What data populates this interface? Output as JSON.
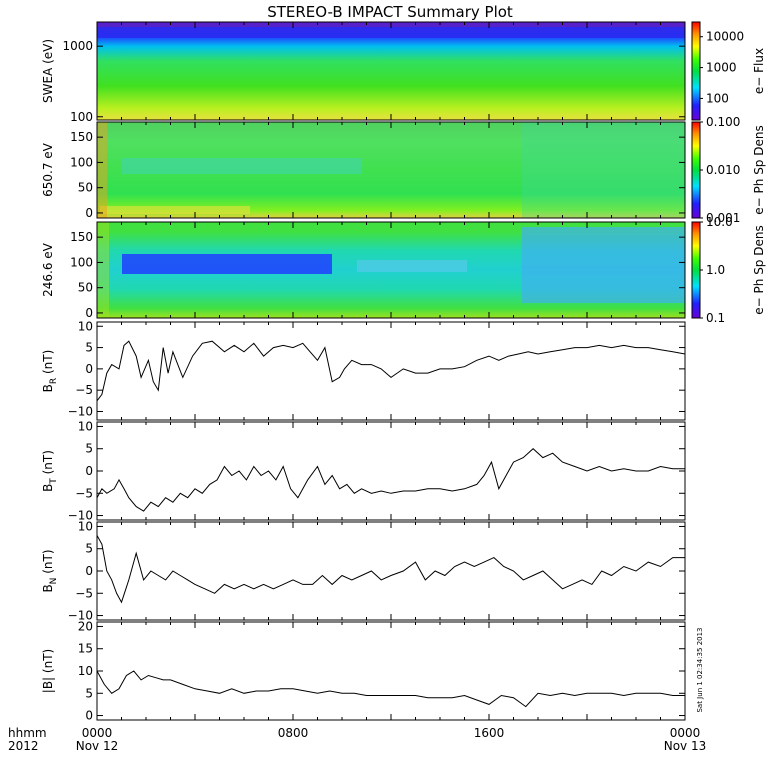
{
  "title": "STEREO-B IMPACT Summary Plot",
  "stamp": "Sat Jun 1 02:34:35 2013",
  "time_axis": {
    "label_top": "hhmm",
    "label_bottom": "2012",
    "ticks": [
      {
        "label": "0000",
        "sub": "Nov 12",
        "hour": 0
      },
      {
        "label": "0800",
        "sub": "",
        "hour": 8
      },
      {
        "label": "1600",
        "sub": "",
        "hour": 16
      },
      {
        "label": "0000",
        "sub": "Nov 13",
        "hour": 24
      }
    ],
    "range_hours": [
      0,
      24
    ]
  },
  "chart_data": [
    {
      "type": "heatmap",
      "ylabel": "SWEA (eV)",
      "ylog": true,
      "ylim": [
        90,
        2200
      ],
      "yticks": [
        "1000",
        "100"
      ],
      "yticks_values": [
        1000,
        100
      ],
      "colorbar": {
        "label": "e− Flux",
        "log": true,
        "range": [
          20,
          30000
        ],
        "ticks": [
          "10000",
          "1000",
          "100"
        ],
        "tick_values": [
          10000,
          1000,
          100
        ]
      },
      "description_levels": {
        "top_energy": "low flux (blue/purple)",
        "mid_energy": "flux ~1000 (green)",
        "low_energy": "flux ~10000 (yellow)"
      }
    },
    {
      "type": "heatmap",
      "ylabel": "650.7 eV",
      "ylim": [
        -10,
        180
      ],
      "yticks": [
        "150",
        "100",
        "50",
        "0"
      ],
      "yticks_values": [
        150,
        100,
        50,
        0
      ],
      "colorbar": {
        "label": "e− Ph Sp Dens",
        "log": true,
        "range": [
          0.001,
          0.1
        ],
        "ticks": [
          "0.100",
          "0.010",
          "0.001"
        ],
        "tick_values": [
          0.1,
          0.01,
          0.001
        ]
      }
    },
    {
      "type": "heatmap",
      "ylabel": "246.6 eV",
      "ylim": [
        -10,
        180
      ],
      "yticks": [
        "150",
        "100",
        "50",
        "0"
      ],
      "yticks_values": [
        150,
        100,
        50,
        0
      ],
      "colorbar": {
        "label": "e− Ph Sp Dens",
        "log": true,
        "range": [
          0.1,
          10
        ],
        "ticks": [
          "10.0",
          "1.0",
          "0.1"
        ],
        "tick_values": [
          10,
          1,
          0.1
        ]
      }
    },
    {
      "type": "line",
      "ylabel": "B",
      "ylabel_sub": "R",
      "ylabel_unit": " (nT)",
      "ylim": [
        -12,
        11
      ],
      "yticks": [
        "10",
        "5",
        "0",
        "−5",
        "−10"
      ],
      "yticks_values": [
        10,
        5,
        0,
        -5,
        -10
      ],
      "x": [
        0,
        0.2,
        0.4,
        0.6,
        0.9,
        1.1,
        1.3,
        1.6,
        1.8,
        2.1,
        2.3,
        2.5,
        2.7,
        2.9,
        3.1,
        3.3,
        3.5,
        3.9,
        4.3,
        4.7,
        5.2,
        5.6,
        6.0,
        6.4,
        6.8,
        7.2,
        7.6,
        8.0,
        8.4,
        8.7,
        9.0,
        9.3,
        9.6,
        9.9,
        10.1,
        10.4,
        10.8,
        11.2,
        11.6,
        12.0,
        12.5,
        13.0,
        13.5,
        14.0,
        14.5,
        15.0,
        15.5,
        16.0,
        16.4,
        16.8,
        17.2,
        17.6,
        18.0,
        18.5,
        19.0,
        19.5,
        20.0,
        20.5,
        21.0,
        21.5,
        22.0,
        22.5,
        23.0,
        23.5,
        24.0
      ],
      "y": [
        -7.5,
        -6,
        -1,
        1,
        0,
        5.5,
        6.5,
        3,
        -2,
        2,
        -3,
        -5,
        5,
        -1,
        4,
        1,
        -2,
        3,
        6,
        6.5,
        4,
        5.5,
        4,
        6,
        3,
        5,
        5.5,
        5,
        6,
        4,
        2,
        5,
        -3,
        -2,
        0,
        2,
        1,
        1,
        0,
        -2,
        0,
        -1,
        -1,
        0,
        0,
        0.5,
        2,
        3,
        2,
        3,
        3.5,
        4,
        3.5,
        4,
        4.5,
        5,
        5,
        5.5,
        5,
        5.5,
        5,
        5,
        4.5,
        4,
        3.5
      ]
    },
    {
      "type": "line",
      "ylabel": "B",
      "ylabel_sub": "T",
      "ylabel_unit": " (nT)",
      "ylim": [
        -11,
        11
      ],
      "yticks": [
        "10",
        "5",
        "0",
        "−5",
        "−10"
      ],
      "yticks_values": [
        10,
        5,
        0,
        -5,
        -10
      ],
      "x": [
        0,
        0.2,
        0.4,
        0.7,
        0.9,
        1.1,
        1.3,
        1.6,
        1.9,
        2.2,
        2.5,
        2.8,
        3.1,
        3.4,
        3.7,
        4.0,
        4.3,
        4.6,
        4.9,
        5.2,
        5.5,
        5.8,
        6.1,
        6.4,
        6.7,
        7.0,
        7.3,
        7.6,
        7.9,
        8.2,
        8.6,
        9.0,
        9.3,
        9.6,
        9.9,
        10.2,
        10.5,
        10.8,
        11.2,
        11.6,
        12.0,
        12.5,
        13.0,
        13.5,
        14.0,
        14.5,
        15.0,
        15.5,
        15.8,
        16.1,
        16.4,
        16.7,
        17.0,
        17.4,
        17.8,
        18.2,
        18.6,
        19.0,
        19.5,
        20.0,
        20.5,
        21.0,
        21.5,
        22.0,
        22.5,
        23.0,
        23.5,
        24.0
      ],
      "y": [
        -6,
        -4,
        -5,
        -4,
        -2,
        -4,
        -6,
        -8,
        -9,
        -7,
        -8,
        -6,
        -7,
        -5,
        -6,
        -4,
        -5,
        -3,
        -2,
        1,
        -1,
        0,
        -2,
        1,
        -1,
        0,
        -2,
        1,
        -4,
        -6,
        -2,
        1,
        -3,
        -1,
        -4,
        -3,
        -5,
        -4,
        -5,
        -4.5,
        -5,
        -4.5,
        -4.5,
        -4,
        -4,
        -4.5,
        -4,
        -3,
        -1,
        2,
        -4,
        -1,
        2,
        3,
        5,
        3,
        4,
        2,
        1,
        0,
        1,
        0,
        0.5,
        0,
        0,
        1,
        0.5,
        0.5
      ]
    },
    {
      "type": "line",
      "ylabel": "B",
      "ylabel_sub": "N",
      "ylabel_unit": " (nT)",
      "ylim": [
        -11,
        11
      ],
      "yticks": [
        "10",
        "5",
        "0",
        "−5",
        "−10"
      ],
      "yticks_values": [
        10,
        5,
        0,
        -5,
        -10
      ],
      "x": [
        0,
        0.2,
        0.4,
        0.6,
        0.8,
        1.0,
        1.3,
        1.6,
        1.9,
        2.2,
        2.5,
        2.8,
        3.1,
        3.4,
        3.7,
        4.0,
        4.4,
        4.8,
        5.2,
        5.6,
        6.0,
        6.4,
        6.8,
        7.2,
        7.6,
        8.0,
        8.4,
        8.8,
        9.2,
        9.6,
        10.0,
        10.4,
        10.8,
        11.2,
        11.6,
        12.0,
        12.5,
        13.0,
        13.4,
        13.8,
        14.2,
        14.6,
        15.0,
        15.4,
        15.8,
        16.2,
        16.6,
        17.0,
        17.4,
        17.8,
        18.2,
        18.6,
        19.0,
        19.4,
        19.8,
        20.2,
        20.6,
        21.0,
        21.5,
        22.0,
        22.5,
        23.0,
        23.5,
        24.0
      ],
      "y": [
        8,
        6,
        0,
        -2,
        -5,
        -7,
        -2,
        4,
        -2,
        0,
        -1,
        -2,
        0,
        -1,
        -2,
        -3,
        -4,
        -5,
        -3,
        -4,
        -3,
        -4,
        -3,
        -4,
        -3,
        -2,
        -3,
        -3,
        -1,
        -3,
        -1,
        -2,
        -1,
        0,
        -2,
        -1,
        0,
        2,
        -2,
        0,
        -1,
        1,
        2,
        1,
        2,
        3,
        1,
        0,
        -2,
        -1,
        0,
        -2,
        -4,
        -3,
        -2,
        -3,
        0,
        -1,
        1,
        0,
        2,
        1,
        3,
        3
      ]
    },
    {
      "type": "line",
      "ylabel": "|B| (nT)",
      "ylim": [
        -1,
        21
      ],
      "yticks": [
        "20",
        "15",
        "10",
        "5",
        "0"
      ],
      "yticks_values": [
        20,
        15,
        10,
        5,
        0
      ],
      "x": [
        0,
        0.3,
        0.6,
        0.9,
        1.2,
        1.5,
        1.8,
        2.1,
        2.4,
        2.7,
        3.0,
        3.5,
        4.0,
        4.5,
        5.0,
        5.5,
        6.0,
        6.5,
        7.0,
        7.5,
        8.0,
        8.5,
        9.0,
        9.5,
        10.0,
        10.5,
        11.0,
        11.5,
        12.0,
        12.5,
        13.0,
        13.5,
        14.0,
        14.5,
        15.0,
        15.5,
        16.0,
        16.5,
        17.0,
        17.5,
        18.0,
        18.5,
        19.0,
        19.5,
        20.0,
        20.5,
        21.0,
        21.5,
        22.0,
        22.5,
        23.0,
        23.5,
        24.0
      ],
      "y": [
        10,
        7,
        5,
        6,
        9,
        10,
        8,
        9,
        8.5,
        8,
        8,
        7,
        6,
        5.5,
        5,
        6,
        5,
        5.5,
        5.5,
        6,
        6,
        5.5,
        5,
        5.5,
        5,
        5,
        4.5,
        4.5,
        4.5,
        4.5,
        4.5,
        4,
        4,
        4,
        4.5,
        3.5,
        2.5,
        4.5,
        4,
        2,
        5,
        4.5,
        5,
        4.5,
        5,
        5,
        5,
        4.5,
        5,
        5,
        5,
        4.5,
        4.5
      ]
    }
  ]
}
